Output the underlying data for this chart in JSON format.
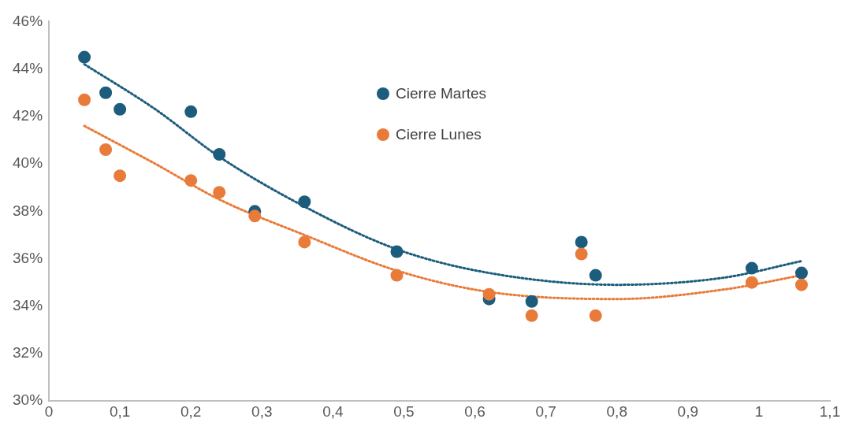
{
  "chart_data": {
    "type": "scatter",
    "xlim": [
      0,
      1.1
    ],
    "xticks": [
      0,
      {
        "value": 0.1,
        "label": "0,1"
      },
      {
        "value": 0.2,
        "label": "0,2"
      },
      {
        "value": 0.3,
        "label": "0,3"
      },
      {
        "value": 0.4,
        "label": "0,4"
      },
      {
        "value": 0.5,
        "label": "0,5"
      },
      {
        "value": 0.6,
        "label": "0,6"
      },
      {
        "value": 0.7,
        "label": "0,7"
      },
      {
        "value": 0.8,
        "label": "0,8"
      },
      {
        "value": 0.9,
        "label": "0,9"
      },
      1,
      {
        "value": 1.1,
        "label": "1,1"
      }
    ],
    "ylim": [
      30,
      46
    ],
    "yticks": [
      {
        "value": 30,
        "label": "30%"
      },
      {
        "value": 32,
        "label": "32%"
      },
      {
        "value": 34,
        "label": "34%"
      },
      {
        "value": 36,
        "label": "36%"
      },
      {
        "value": 38,
        "label": "38%"
      },
      {
        "value": 40,
        "label": "40%"
      },
      {
        "value": 42,
        "label": "42%"
      },
      {
        "value": 44,
        "label": "44%"
      },
      {
        "value": 46,
        "label": "46%"
      }
    ],
    "grid": false,
    "legend": "top",
    "marker": "circle",
    "series": [
      {
        "name": "Cierre Martes",
        "color": "#1c5c7c",
        "x": [
          0.05,
          0.08,
          0.1,
          0.2,
          0.24,
          0.29,
          0.36,
          0.49,
          0.62,
          0.68,
          0.75,
          0.77,
          0.99,
          1.06
        ],
        "values": [
          44.5,
          43.0,
          42.3,
          42.2,
          40.4,
          38.0,
          38.4,
          36.3,
          34.3,
          34.2,
          36.7,
          35.3,
          35.6,
          35.4
        ]
      },
      {
        "name": "Cierre Lunes",
        "color": "#e97b3a",
        "x": [
          0.05,
          0.08,
          0.1,
          0.2,
          0.24,
          0.29,
          0.36,
          0.49,
          0.62,
          0.68,
          0.75,
          0.77,
          0.99,
          1.06
        ],
        "values": [
          42.7,
          40.6,
          39.5,
          39.3,
          38.8,
          37.8,
          36.7,
          35.3,
          34.5,
          33.6,
          36.2,
          33.6,
          35.0,
          34.9
        ]
      },
      {
        "type": "line",
        "line_style": "dotted",
        "marker": "none",
        "color": "#1c5c7c",
        "x": [
          0.05,
          0.15,
          0.24,
          0.36,
          0.49,
          0.62,
          0.8,
          0.95,
          1.06
        ],
        "values": [
          44.2,
          42.3,
          40.3,
          38.2,
          36.4,
          35.4,
          34.9,
          35.2,
          35.9
        ]
      },
      {
        "type": "line",
        "line_style": "dotted",
        "marker": "none",
        "color": "#e97b3a",
        "x": [
          0.05,
          0.15,
          0.24,
          0.36,
          0.49,
          0.62,
          0.8,
          0.95,
          1.06
        ],
        "values": [
          41.6,
          40.0,
          38.5,
          37.0,
          35.5,
          34.6,
          34.3,
          34.7,
          35.3
        ]
      }
    ]
  }
}
